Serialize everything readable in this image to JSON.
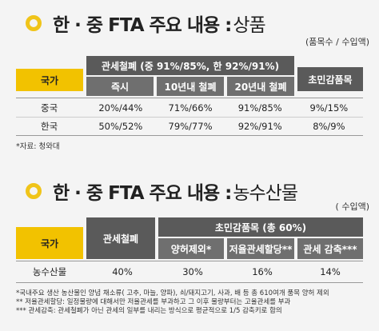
{
  "section1": {
    "title_bold": "한 · 중 FTA 주요 내용 :",
    "title_light": "상품",
    "unit": "(품목수 / 수입액)",
    "header_country": "국가",
    "header_group": "관세철폐 (중 91%/85%, 한 92%/91%)",
    "header_sub": [
      "즉시",
      "10년내 철폐",
      "20년내 철폐"
    ],
    "header_exempt": "초민감품목",
    "rows": [
      {
        "country": "중국",
        "values": [
          "20%/44%",
          "71%/66%",
          "91%/85%",
          "9%/15%"
        ]
      },
      {
        "country": "한국",
        "values": [
          "50%/52%",
          "79%/77%",
          "92%/91%",
          "8%/9%"
        ]
      }
    ],
    "source": "*자료: 청와대"
  },
  "section2": {
    "title_bold": "한 · 중 FTA 주요 내용 :",
    "title_light": "농수산물",
    "unit": "( 수입액)",
    "header_country": "국가",
    "header_abolish": "관세철폐",
    "header_group": "초민감품목 (총 60%)",
    "header_sub": [
      "양허제외*",
      "저율관세할당**",
      "관세 감축***"
    ],
    "row": {
      "country": "농수산물",
      "values": [
        "40%",
        "30%",
        "16%",
        "14%"
      ]
    },
    "notes": [
      "*국내주요 생산 농산물인 양념 채소류( 고추, 마늘, 양파), 쇠/돼지고기, 사과, 배 등 총 610여개 품목 양허 제외",
      "** 저율관세할당: 일정물량에 대해서만 저율관세를 부과하고 그 이후 물량부터는 고율관세를 부과",
      "*** 관세감축: 관세철폐가 아닌 관세의 일부를 내리는 방식으로 평균적으로 1/5 감축키로 합의"
    ]
  }
}
